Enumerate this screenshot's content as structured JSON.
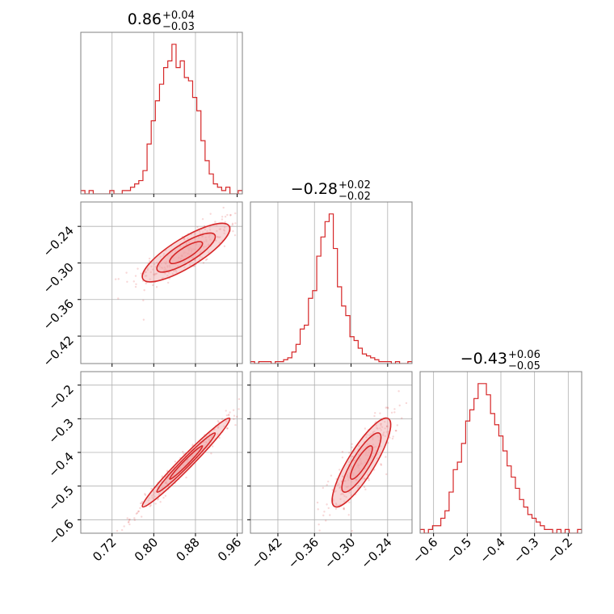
{
  "colors": {
    "accent": "#d62728",
    "fill": "#f0a7a8",
    "grid": "#b0b0b0",
    "frame": "#808080"
  },
  "chart_data": {
    "type": "corner",
    "parameters": [
      {
        "title_value": "0.86",
        "title_plus": "+0.04",
        "title_minus": "−0.03",
        "range": [
          0.66,
          0.97
        ],
        "ticks": [
          0.72,
          0.8,
          0.88,
          0.96
        ],
        "tick_labels": [
          "0.72",
          "0.80",
          "0.88",
          "0.96"
        ]
      },
      {
        "title_value": "−0.28",
        "title_plus": "+0.02",
        "title_minus": "−0.02",
        "range": [
          -0.465,
          -0.2
        ],
        "ticks": [
          -0.42,
          -0.36,
          -0.3,
          -0.24
        ],
        "tick_labels": [
          "−0.42",
          "−0.36",
          "−0.30",
          "−0.24"
        ]
      },
      {
        "title_value": "−0.43",
        "title_plus": "+0.06",
        "title_minus": "−0.05",
        "range": [
          -0.64,
          -0.16
        ],
        "ticks": [
          -0.6,
          -0.5,
          -0.4,
          -0.3,
          -0.2
        ],
        "tick_labels": [
          "−0.6",
          "−0.5",
          "−0.4",
          "−0.3",
          "−0.2"
        ]
      }
    ],
    "histograms": [
      {
        "bins": [
          0.66,
          0.97
        ],
        "counts": [
          1,
          0,
          1,
          0,
          0,
          0,
          0,
          1,
          0,
          0,
          1,
          1,
          2,
          3,
          4,
          7,
          15,
          22,
          28,
          33,
          38,
          40,
          45,
          38,
          40,
          35,
          34,
          29,
          25,
          16,
          10,
          6,
          3,
          2,
          1,
          2,
          0,
          0,
          1
        ]
      },
      {
        "bins": [
          -0.465,
          -0.2
        ],
        "counts": [
          1,
          0,
          1,
          1,
          1,
          0,
          1,
          1,
          2,
          3,
          6,
          10,
          18,
          20,
          34,
          38,
          56,
          66,
          74,
          78,
          60,
          40,
          30,
          25,
          14,
          12,
          8,
          5,
          4,
          3,
          2,
          1,
          1,
          1,
          0,
          1,
          0,
          0,
          1
        ]
      },
      {
        "bins": [
          -0.64,
          -0.16
        ],
        "counts": [
          1,
          0,
          1,
          2,
          2,
          4,
          6,
          11,
          17,
          19,
          24,
          30,
          33,
          36,
          40,
          40,
          37,
          32,
          29,
          26,
          22,
          18,
          15,
          12,
          9,
          7,
          5,
          4,
          3,
          2,
          1,
          1,
          0,
          1,
          0,
          1,
          0,
          0,
          1
        ]
      }
    ],
    "pairs": [
      {
        "x": 0,
        "y": 1,
        "center": [
          0.862,
          -0.283
        ],
        "sx": 0.035,
        "sy": 0.02,
        "rho": 0.82
      },
      {
        "x": 0,
        "y": 2,
        "center": [
          0.862,
          -0.43
        ],
        "sx": 0.035,
        "sy": 0.055,
        "rho": 0.98
      },
      {
        "x": 1,
        "y": 2,
        "center": [
          -0.283,
          -0.43
        ],
        "sx": 0.02,
        "sy": 0.055,
        "rho": 0.85
      }
    ],
    "grid": true
  }
}
